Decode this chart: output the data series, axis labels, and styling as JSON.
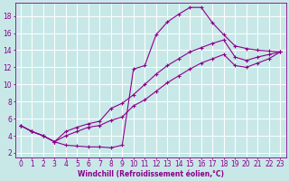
{
  "bg_color": "#c8e8e8",
  "grid_color": "#ffffff",
  "line_color": "#8b008b",
  "marker": "+",
  "marker_size": 3,
  "line_width": 0.8,
  "xlim": [
    -0.5,
    23.5
  ],
  "ylim": [
    1.5,
    19.5
  ],
  "xticks": [
    0,
    1,
    2,
    3,
    4,
    5,
    6,
    7,
    8,
    9,
    10,
    11,
    12,
    13,
    14,
    15,
    16,
    17,
    18,
    19,
    20,
    21,
    22,
    23
  ],
  "yticks": [
    2,
    4,
    6,
    8,
    10,
    12,
    14,
    16,
    18
  ],
  "xlabel": "Windchill (Refroidissement éolien,°C)",
  "curve1_x": [
    0,
    1,
    2,
    3,
    4,
    5,
    6,
    7,
    8,
    9,
    10,
    11,
    12,
    13,
    14,
    15,
    16,
    17,
    18,
    19,
    20,
    21,
    22,
    23
  ],
  "curve1_y": [
    5.2,
    4.5,
    4.0,
    3.3,
    2.9,
    2.8,
    2.7,
    2.7,
    2.6,
    2.9,
    11.8,
    12.2,
    15.8,
    17.3,
    18.2,
    19.0,
    19.0,
    17.2,
    15.8,
    14.5,
    14.2,
    14.0,
    13.9,
    13.8
  ],
  "curve2_x": [
    0,
    1,
    2,
    3,
    4,
    5,
    6,
    7,
    8,
    9,
    10,
    11,
    12,
    13,
    14,
    15,
    16,
    17,
    18,
    19,
    20,
    21,
    22,
    23
  ],
  "curve2_y": [
    5.2,
    4.5,
    4.0,
    3.3,
    4.5,
    5.0,
    5.4,
    5.7,
    7.2,
    7.8,
    8.8,
    10.0,
    11.2,
    12.2,
    13.0,
    13.8,
    14.3,
    14.8,
    15.2,
    13.2,
    12.8,
    13.2,
    13.5,
    13.8
  ],
  "curve3_x": [
    0,
    1,
    2,
    3,
    4,
    5,
    6,
    7,
    8,
    9,
    10,
    11,
    12,
    13,
    14,
    15,
    16,
    17,
    18,
    19,
    20,
    21,
    22,
    23
  ],
  "curve3_y": [
    5.2,
    4.5,
    4.0,
    3.3,
    4.0,
    4.5,
    5.0,
    5.2,
    5.8,
    6.2,
    7.5,
    8.2,
    9.2,
    10.2,
    11.0,
    11.8,
    12.5,
    13.0,
    13.5,
    12.2,
    12.0,
    12.5,
    13.0,
    13.8
  ],
  "tick_fontsize": 5.5,
  "xlabel_fontsize": 5.5
}
